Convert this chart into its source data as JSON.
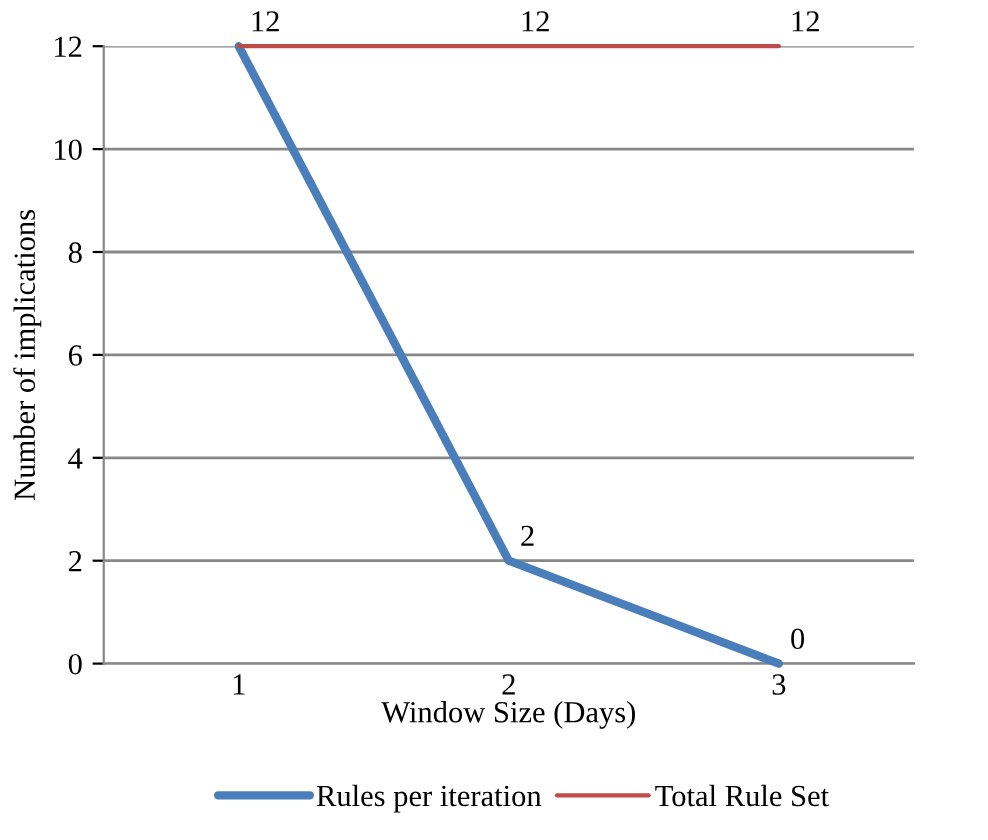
{
  "chart_data": {
    "type": "line",
    "xlabel": "Window Size (Days)",
    "ylabel": "Number of implications",
    "categories": [
      "1",
      "2",
      "3"
    ],
    "series": [
      {
        "name": "Rules per iteration",
        "color": "#4a7ebb",
        "values": [
          12,
          2,
          0
        ],
        "value_labels": [
          null,
          "2",
          "0"
        ]
      },
      {
        "name": "Total Rule Set",
        "color": "#be4b48",
        "values": [
          12,
          12,
          12
        ],
        "value_labels": [
          "12",
          "12",
          "12"
        ]
      }
    ],
    "ylim": [
      0,
      12
    ],
    "yticks": [
      0,
      2,
      4,
      6,
      8,
      10,
      12
    ],
    "grid": "y",
    "legend": "bottom",
    "marker": "none",
    "line_style": "solid"
  }
}
